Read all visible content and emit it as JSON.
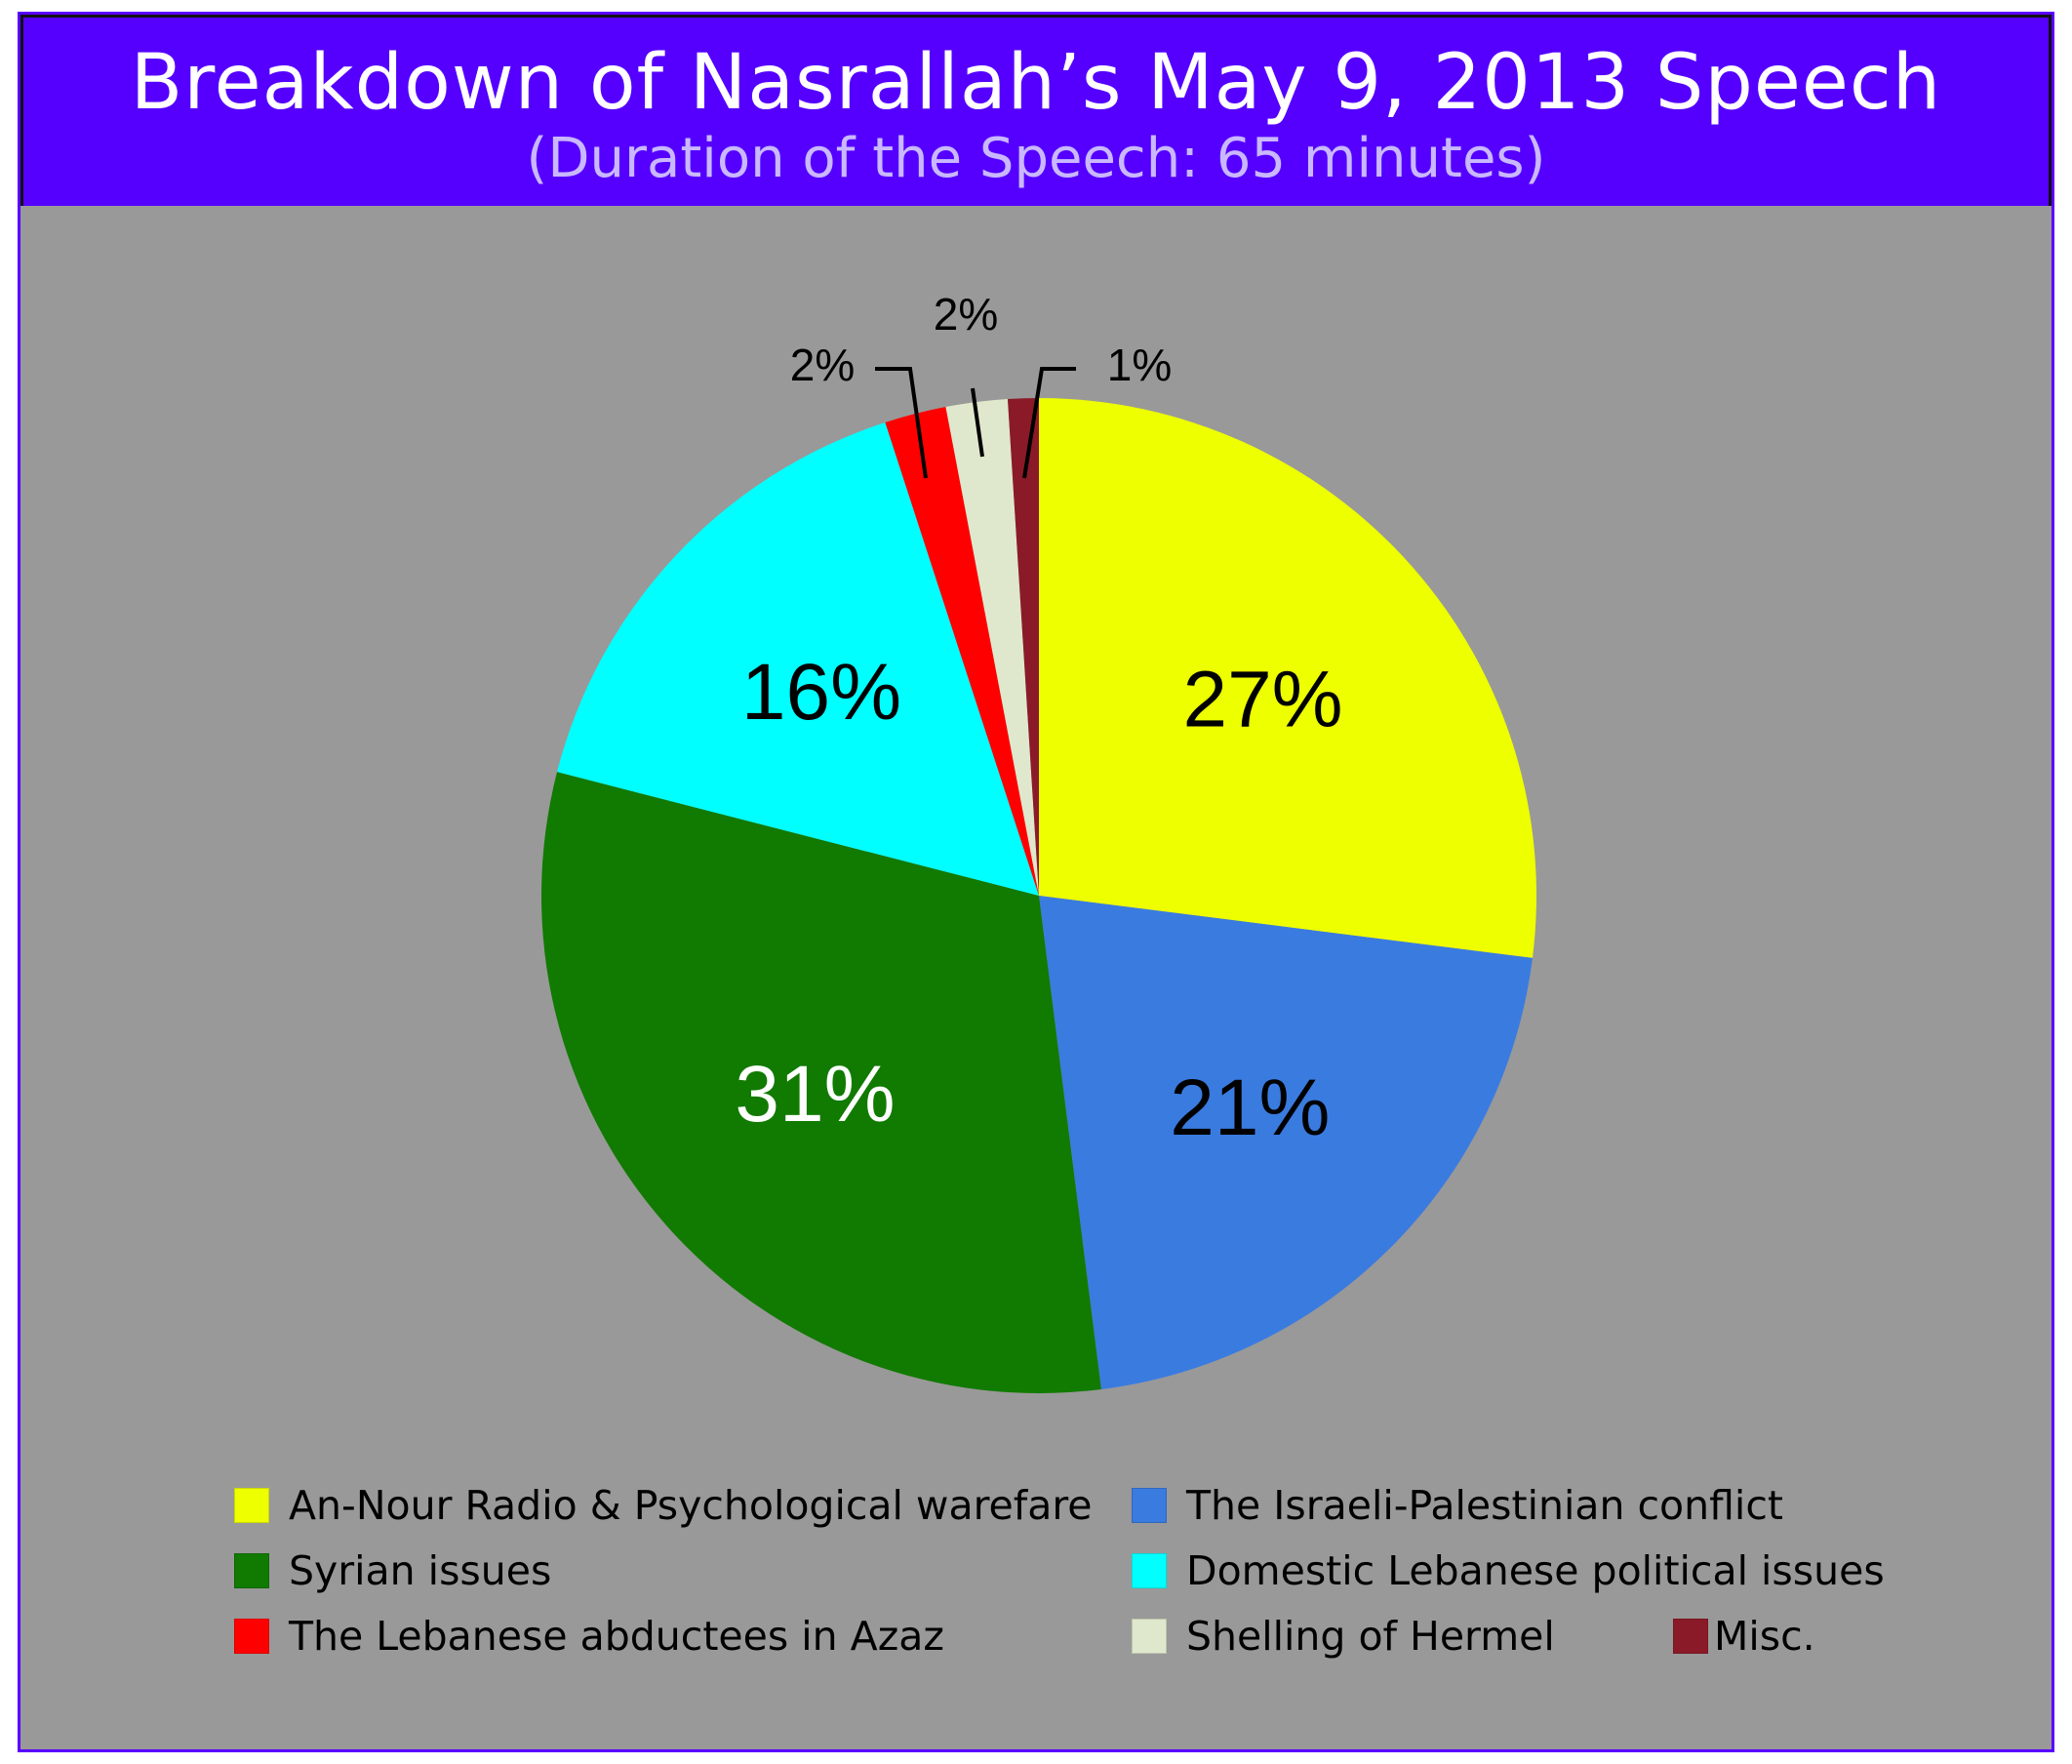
{
  "chart_data": {
    "type": "pie",
    "title": "Breakdown of Nasrallah’s May 9, 2013 Speech",
    "subtitle": "(Duration of the Speech: 65 minutes)",
    "slices": [
      {
        "label": "An-Nour Radio & Psychological warefare",
        "value": 27,
        "display": "27%",
        "color": "#eeff00"
      },
      {
        "label": "The Israeli-Palestinian conflict",
        "value": 21,
        "display": "21%",
        "color": "#3a7be0"
      },
      {
        "label": "Syrian issues",
        "value": 31,
        "display": "31%",
        "color": "#117a00"
      },
      {
        "label": "Domestic Lebanese political issues",
        "value": 16,
        "display": "16%",
        "color": "#00ffff"
      },
      {
        "label": "The Lebanese abductees in Azaz",
        "value": 2,
        "display": "2%",
        "color": "#ff0000"
      },
      {
        "label": "Shelling of Hermel",
        "value": 2,
        "display": "2%",
        "color": "#dfe8cc"
      },
      {
        "label": "Misc.",
        "value": 1,
        "display": "1%",
        "color": "#8b1a28"
      }
    ],
    "legend_placement": "bottom"
  },
  "colors": {
    "header_background": "#5500ff",
    "plot_background": "#999999",
    "frame_border": "#5a00ff"
  }
}
